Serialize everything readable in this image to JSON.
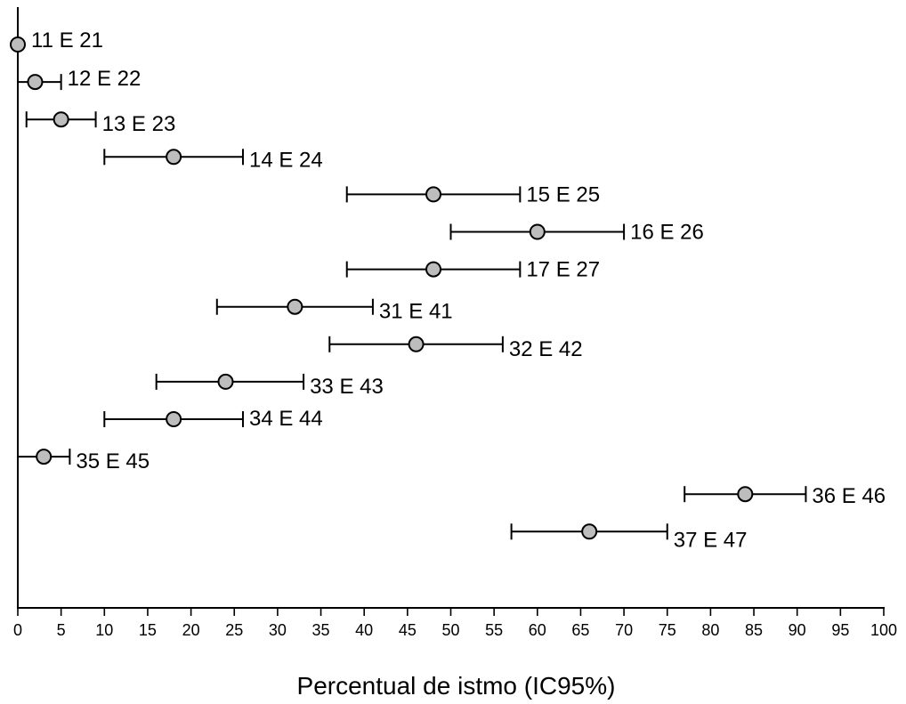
{
  "chart_data": {
    "type": "scatter",
    "title": "",
    "xlabel": "Percentual de istmo (IC95%)",
    "ylabel": "",
    "xlim": [
      0,
      100
    ],
    "xticks": [
      0,
      5,
      10,
      15,
      20,
      25,
      30,
      35,
      40,
      45,
      50,
      55,
      60,
      65,
      70,
      75,
      80,
      85,
      90,
      95,
      100
    ],
    "grid": false,
    "legend": "none",
    "point_color": "#bdbdbd",
    "line_color": "#000000",
    "series": [
      {
        "points": [
          {
            "label": "11 E 21",
            "value": 0,
            "ci_low": 0,
            "ci_high": 0
          },
          {
            "label": "12 E 22",
            "value": 2,
            "ci_low": 0,
            "ci_high": 5
          },
          {
            "label": "13 E 23",
            "value": 5,
            "ci_low": 1,
            "ci_high": 9
          },
          {
            "label": "14 E 24",
            "value": 18,
            "ci_low": 10,
            "ci_high": 26
          },
          {
            "label": "15 E 25",
            "value": 48,
            "ci_low": 38,
            "ci_high": 58
          },
          {
            "label": "16 E 26",
            "value": 60,
            "ci_low": 50,
            "ci_high": 70
          },
          {
            "label": "17 E 27",
            "value": 48,
            "ci_low": 38,
            "ci_high": 58
          },
          {
            "label": "31 E 41",
            "value": 32,
            "ci_low": 23,
            "ci_high": 41
          },
          {
            "label": "32 E 42",
            "value": 46,
            "ci_low": 36,
            "ci_high": 56
          },
          {
            "label": "33 E 43",
            "value": 24,
            "ci_low": 16,
            "ci_high": 33
          },
          {
            "label": "34 E 44",
            "value": 18,
            "ci_low": 10,
            "ci_high": 26
          },
          {
            "label": "35 E 45",
            "value": 3,
            "ci_low": 0,
            "ci_high": 6
          },
          {
            "label": "36 E 46",
            "value": 84,
            "ci_low": 77,
            "ci_high": 91
          },
          {
            "label": "37 E 47",
            "value": 66,
            "ci_low": 57,
            "ci_high": 75
          }
        ]
      }
    ]
  }
}
